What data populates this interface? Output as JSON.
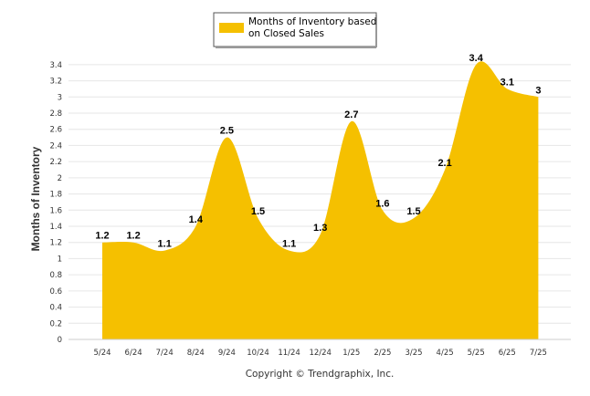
{
  "chart_data": {
    "type": "area",
    "categories": [
      "5/24",
      "6/24",
      "7/24",
      "8/24",
      "9/24",
      "10/24",
      "11/24",
      "12/24",
      "1/25",
      "2/25",
      "3/25",
      "4/25",
      "5/25",
      "6/25",
      "7/25"
    ],
    "series": [
      {
        "name": "Months of Inventory based on Closed Sales",
        "values": [
          1.2,
          1.2,
          1.1,
          1.4,
          2.5,
          1.5,
          1.1,
          1.3,
          2.7,
          1.6,
          1.5,
          2.1,
          3.4,
          3.1,
          3
        ]
      }
    ],
    "data_labels": [
      "1.2",
      "1.2",
      "1.1",
      "1.4",
      "2.5",
      "1.5",
      "1.1",
      "1.3",
      "2.7",
      "1.6",
      "1.5",
      "2.1",
      "3.4",
      "3.1",
      "3"
    ],
    "ylabel": "Months of Inventory",
    "xlabel": "",
    "ylim": [
      0,
      3.4
    ],
    "yticks": [
      "0",
      "0.2",
      "0.4",
      "0.6",
      "0.8",
      "1",
      "1.2",
      "1.4",
      "1.6",
      "1.8",
      "2",
      "2.2",
      "2.4",
      "2.6",
      "2.8",
      "3",
      "3.2",
      "3.4"
    ],
    "grid": true,
    "legend_position": "top-center",
    "series_color": "#F5C000"
  },
  "legend": {
    "line1": "Months of Inventory based",
    "line2": "on Closed Sales"
  },
  "footer": {
    "copyright": "Copyright © Trendgraphix, Inc."
  }
}
